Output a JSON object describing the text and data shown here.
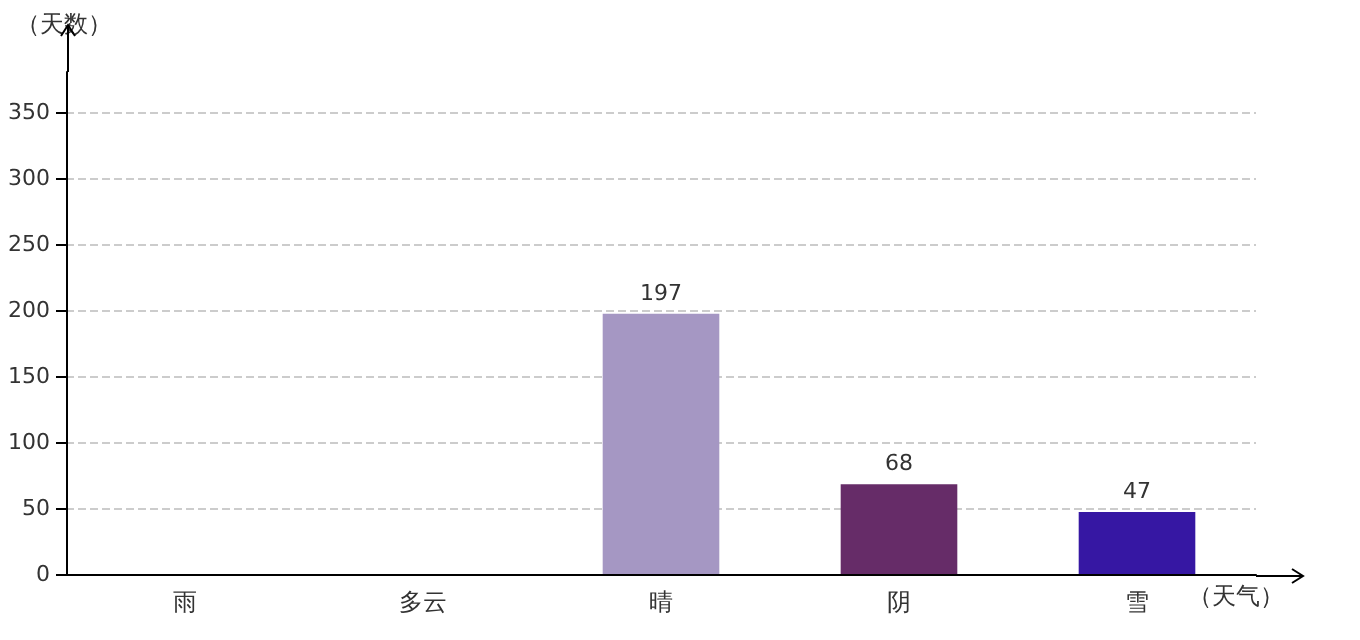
{
  "chart_data": {
    "type": "bar",
    "xlabel": "（天气）",
    "ylabel": "（天数）",
    "categories": [
      "雨",
      "多云",
      "晴",
      "阴",
      "雪"
    ],
    "values": [
      null,
      null,
      197,
      68,
      47
    ],
    "colors": [
      "#0af230",
      "#64b0bc",
      "#a597c3",
      "#662c68",
      "#3617a3"
    ],
    "ylim": [
      0,
      380
    ],
    "yticks": [
      0,
      50,
      100,
      150,
      200,
      250,
      300,
      350
    ],
    "grid": "y",
    "data_labels": true
  }
}
